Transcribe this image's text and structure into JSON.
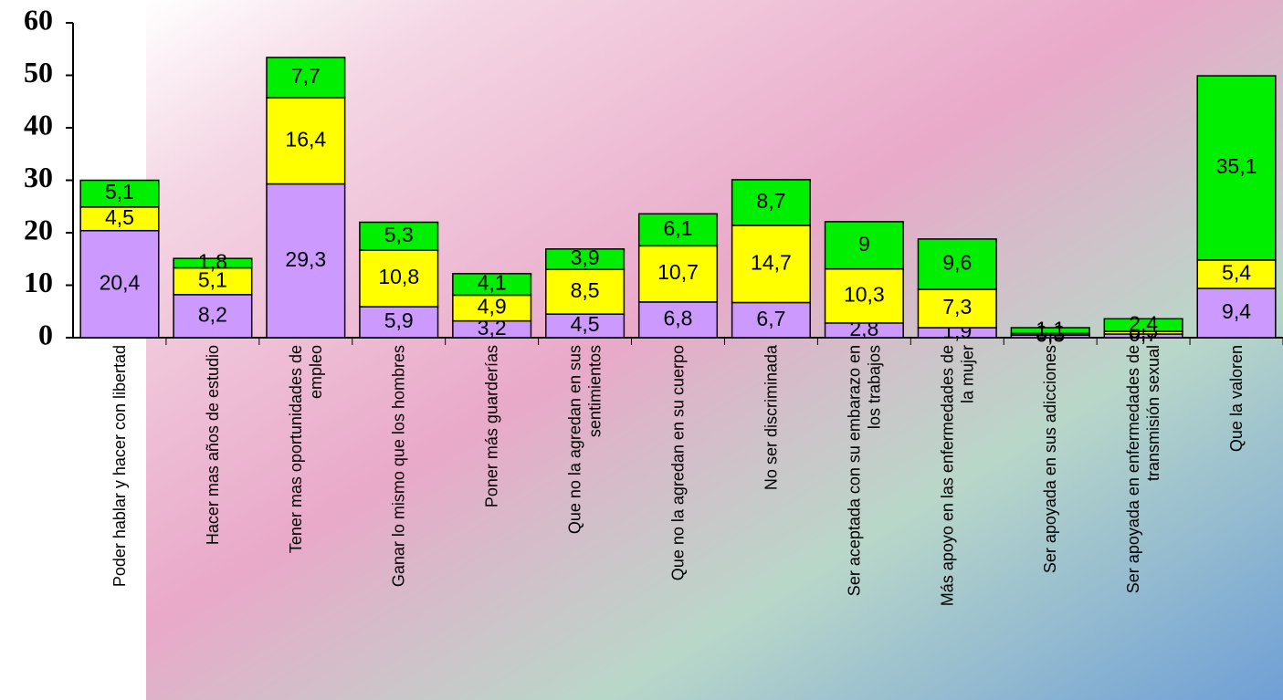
{
  "chart_data": {
    "type": "stacked-bar",
    "categories": [
      "Poder hablar y hacer con libertad",
      "Hacer mas años de estudio",
      "Tener mas oportunidades de\nempleo",
      "Ganar lo mismo que los hombres",
      "Poner más guarderías",
      "Que no la agredan en sus\nsentimientos",
      "Que no la agredan en su cuerpo",
      "No ser discriminada",
      "Ser aceptada con su embarazo en\nlos trabajos",
      "Más apoyo en las enfermedades de\nla mujer",
      "Ser apoyada en sus adicciones",
      "Ser apoyada en enfermedades de\ntransmisión sexual",
      "Que la valoren"
    ],
    "series": [
      {
        "color": "#cc99ff",
        "values": [
          20.4,
          8.2,
          29.3,
          5.9,
          3.2,
          4.5,
          6.8,
          6.7,
          2.8,
          1.9,
          0.5,
          0.7,
          9.4
        ],
        "value_labels": [
          "20,4",
          "8,2",
          "29,3",
          "5,9",
          "3,2",
          "4,5",
          "6,8",
          "6,7",
          "2,8",
          "1,9",
          "0,5",
          "0,7",
          "9,4"
        ]
      },
      {
        "color": "#ffff00",
        "values": [
          4.5,
          5.1,
          16.4,
          10.8,
          4.9,
          8.5,
          10.7,
          14.7,
          10.3,
          7.3,
          0.3,
          0.5,
          5.4
        ],
        "value_labels": [
          "4,5",
          "5,1",
          "16,4",
          "10,8",
          "4,9",
          "8,5",
          "10,7",
          "14,7",
          "10,3",
          "7,3",
          "0,3",
          "0,5",
          "5,4"
        ]
      },
      {
        "color": "#00ee00",
        "values": [
          5.1,
          1.8,
          7.7,
          5.3,
          4.1,
          3.9,
          6.1,
          8.7,
          9,
          9.6,
          1.1,
          2.4,
          35.1
        ],
        "value_labels": [
          "5,1",
          "1,8",
          "7,7",
          "5,3",
          "4,1",
          "3,9",
          "6,1",
          "8,7",
          "9",
          "9,6",
          "1,1",
          "2,4",
          "35,1"
        ]
      }
    ],
    "ylim": [
      0,
      60
    ],
    "yticks": [
      0,
      10,
      20,
      30,
      40,
      50,
      60
    ],
    "grid": false
  }
}
